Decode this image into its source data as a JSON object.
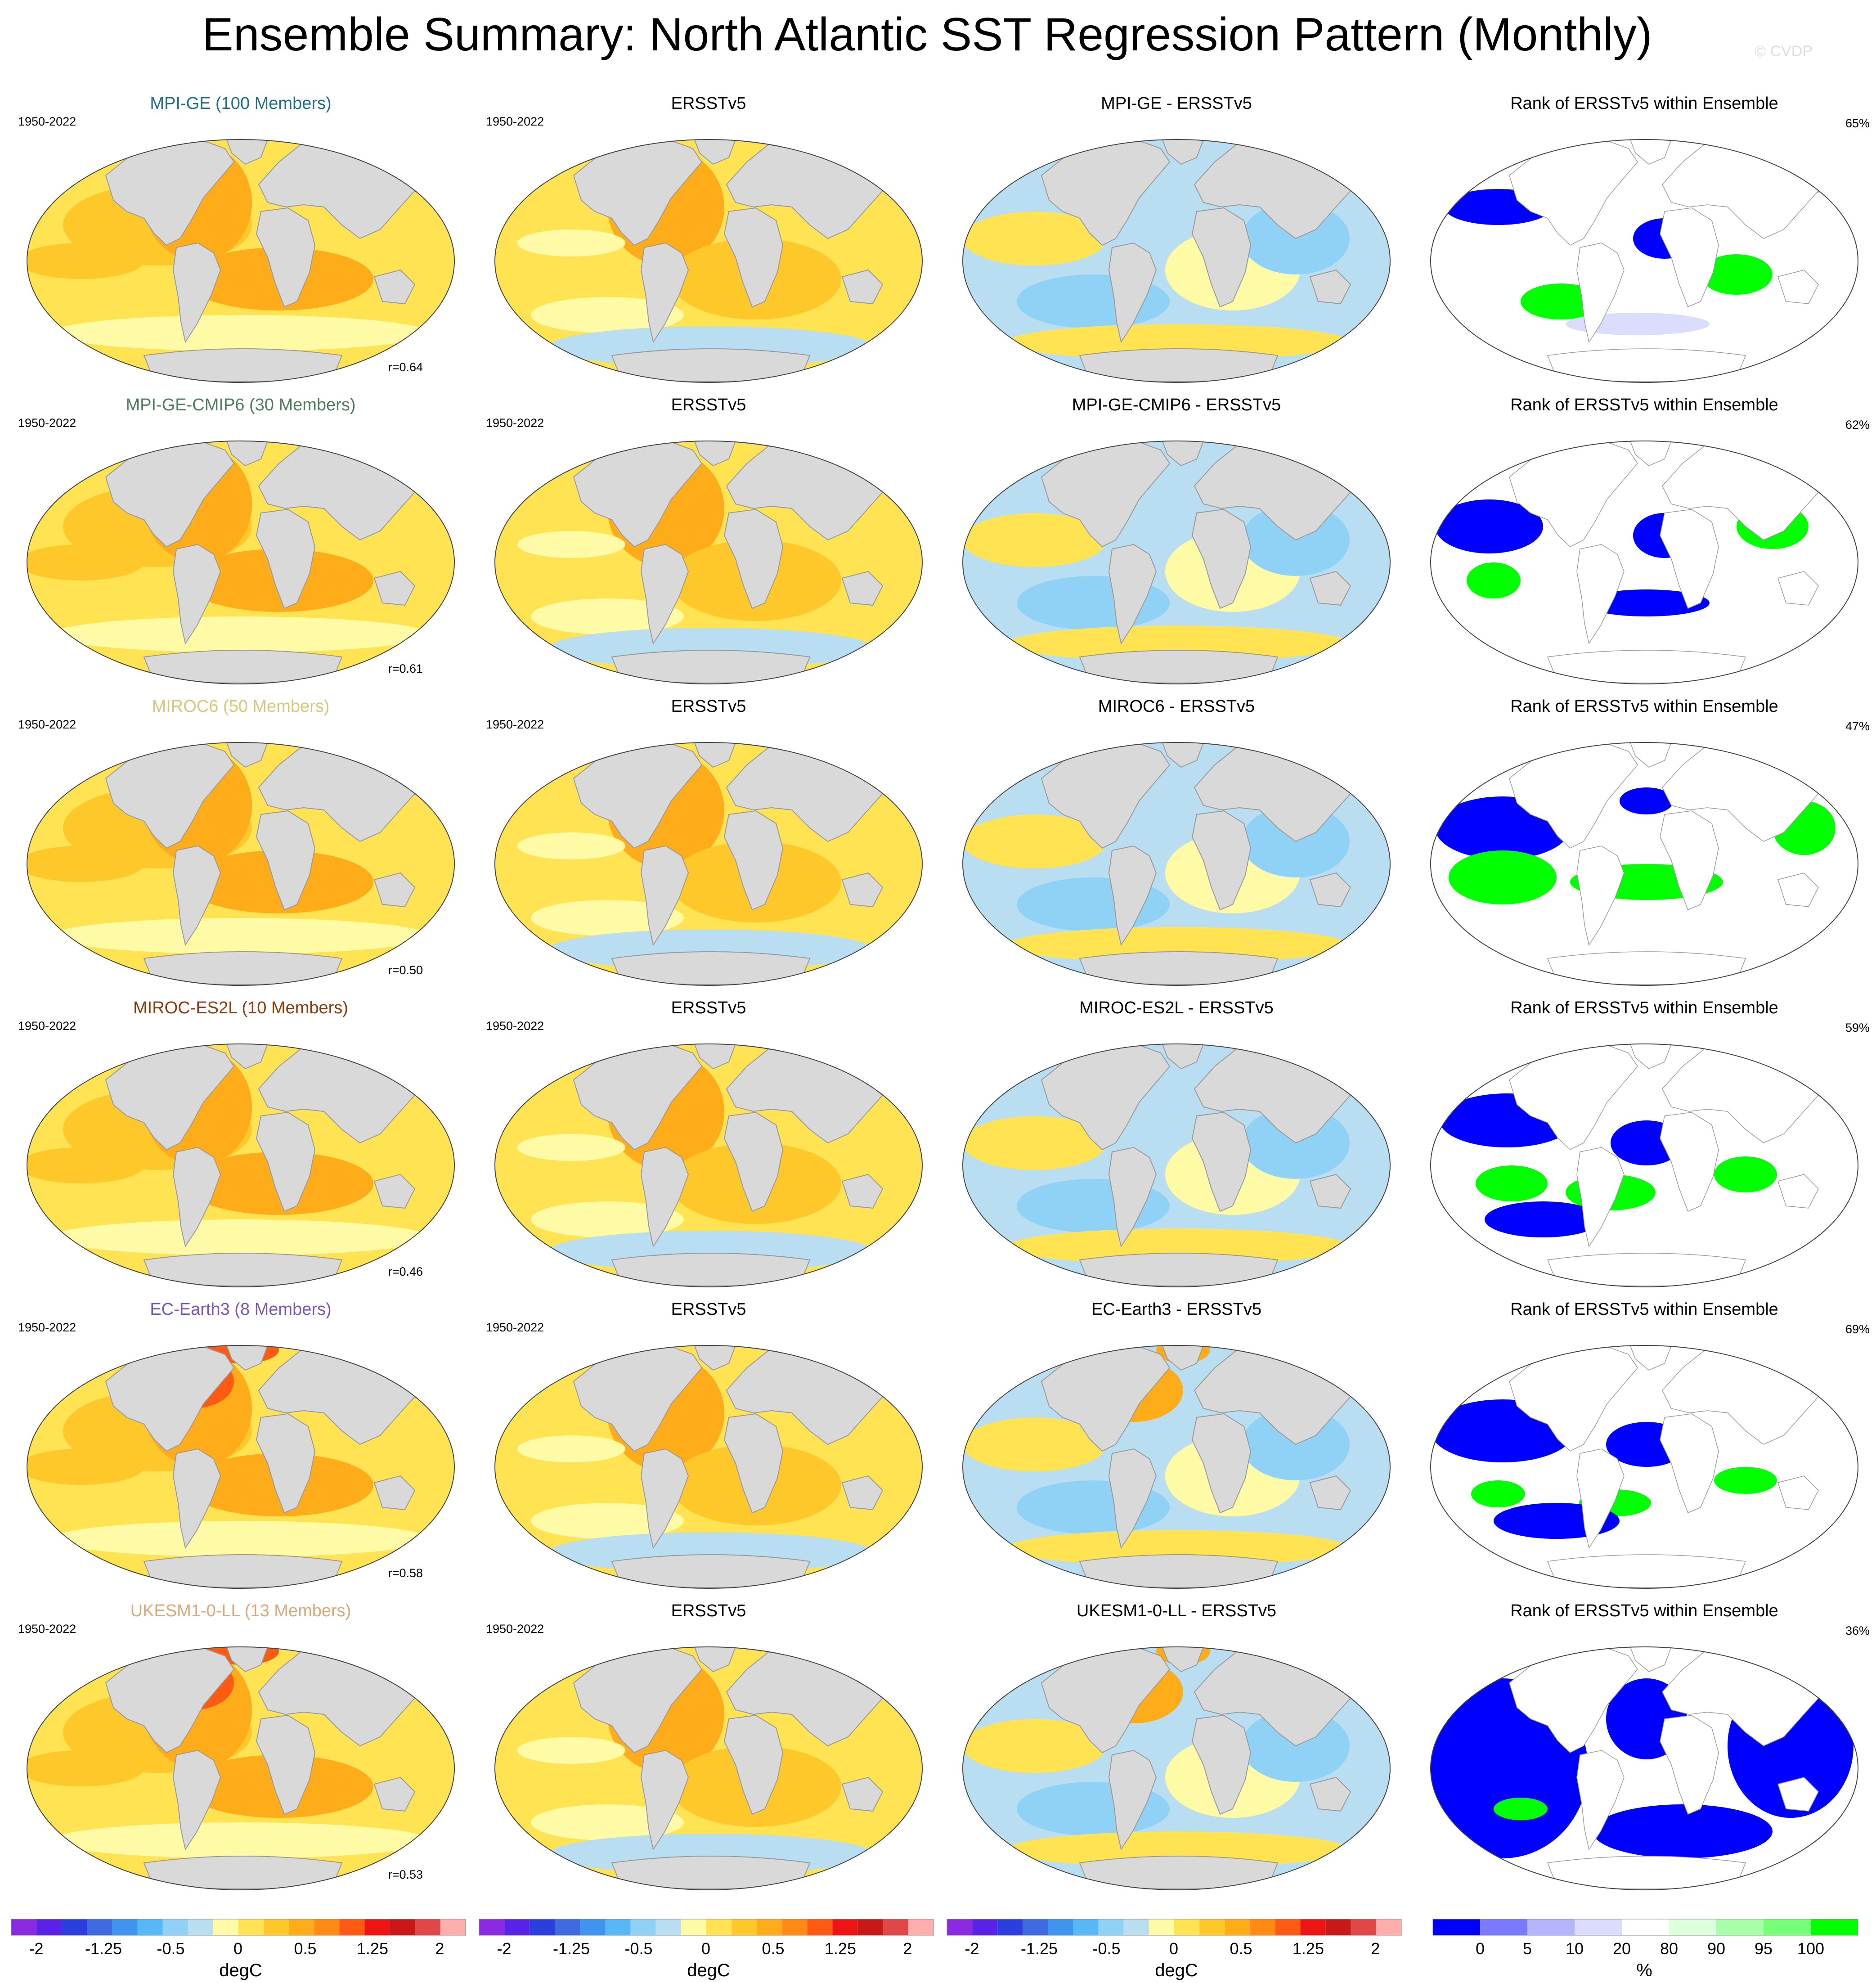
{
  "title": "Ensemble Summary: North Atlantic SST Regression Pattern (Monthly)",
  "watermark": "© CVDP",
  "palette": {
    "diverging": [
      "#8a2be2",
      "#5a22e6",
      "#2b3fde",
      "#3f6be0",
      "#3f94ee",
      "#58b8f6",
      "#8fd2f6",
      "#b9def2",
      "#fffaa6",
      "#ffe352",
      "#ffc82a",
      "#ffac1a",
      "#ff8a14",
      "#ff5a12",
      "#ee1414",
      "#c81818",
      "#e04848",
      "#ffadad"
    ],
    "rank": [
      "#0000ff",
      "#7a7aff",
      "#b4b4ff",
      "#dcdcff",
      "#ffffff",
      "#dcffdc",
      "#a8ffa8",
      "#78ff78",
      "#00ff00"
    ],
    "land": "#d9d9d9",
    "coast": "#9a9a9a",
    "title_colors": [
      "#1c6e86",
      "#4e7b5c",
      "#d8c77a",
      "#8a3a0c",
      "#7a55b8",
      "#d9a87a"
    ]
  },
  "rows": [
    {
      "model_title": "MPI-GE (100 Members)",
      "period": "1950-2022",
      "r": "r=0.64",
      "obs_title": "ERSSTv5",
      "obs_period": "1950-2022",
      "diff_title": "MPI-GE - ERSSTv5",
      "rank_title": "Rank of ERSSTv5 within Ensemble",
      "rank_pct": "65%"
    },
    {
      "model_title": "MPI-GE-CMIP6 (30 Members)",
      "period": "1950-2022",
      "r": "r=0.61",
      "obs_title": "ERSSTv5",
      "obs_period": "1950-2022",
      "diff_title": "MPI-GE-CMIP6 - ERSSTv5",
      "rank_title": "Rank of ERSSTv5 within Ensemble",
      "rank_pct": "62%"
    },
    {
      "model_title": "MIROC6 (50 Members)",
      "period": "1950-2022",
      "r": "r=0.50",
      "obs_title": "ERSSTv5",
      "obs_period": "1950-2022",
      "diff_title": "MIROC6 - ERSSTv5",
      "rank_title": "Rank of ERSSTv5 within Ensemble",
      "rank_pct": "47%"
    },
    {
      "model_title": "MIROC-ES2L (10 Members)",
      "period": "1950-2022",
      "r": "r=0.46",
      "obs_title": "ERSSTv5",
      "obs_period": "1950-2022",
      "diff_title": "MIROC-ES2L - ERSSTv5",
      "rank_title": "Rank of ERSSTv5 within Ensemble",
      "rank_pct": "59%"
    },
    {
      "model_title": "EC-Earth3 (8 Members)",
      "period": "1950-2022",
      "r": "r=0.58",
      "obs_title": "ERSSTv5",
      "obs_period": "1950-2022",
      "diff_title": "EC-Earth3 - ERSSTv5",
      "rank_title": "Rank of ERSSTv5 within Ensemble",
      "rank_pct": "69%"
    },
    {
      "model_title": "UKESM1-0-LL (13 Members)",
      "period": "1950-2022",
      "r": "r=0.53",
      "obs_title": "ERSSTv5",
      "obs_period": "1950-2022",
      "diff_title": "UKESM1-0-LL - ERSSTv5",
      "rank_title": "Rank of ERSSTv5 within Ensemble",
      "rank_pct": "36%"
    }
  ],
  "colorbars": {
    "sst": {
      "label": "degC",
      "ticks": [
        "-2",
        "-1.25",
        "-0.5",
        "0",
        "0.5",
        "1.25",
        "2"
      ]
    },
    "rank": {
      "label": "%",
      "ticks": [
        "0",
        "5",
        "10",
        "20",
        "80",
        "90",
        "95",
        "100"
      ]
    }
  }
}
